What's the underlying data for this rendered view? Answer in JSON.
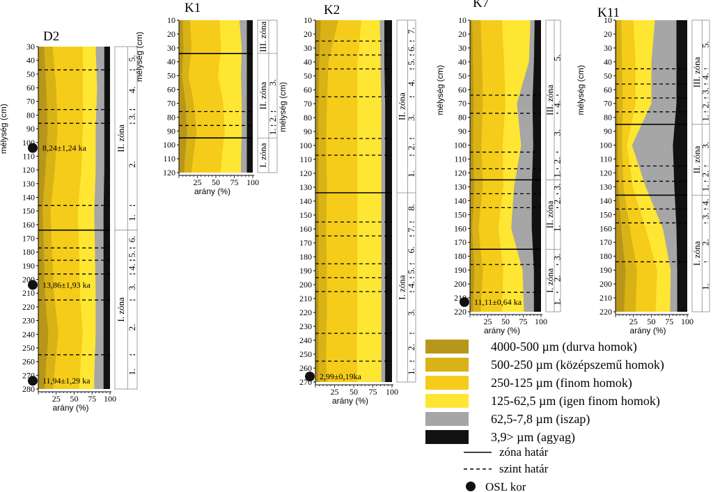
{
  "chart_data": {
    "type": "area",
    "xlabel": "arány (%)",
    "ylabel": "mélység (cm)",
    "xticks": [
      25,
      50,
      75,
      100
    ],
    "legend_placement": "bottom-right",
    "grain_classes": [
      {
        "label": "4000-500 µm (durva homok)",
        "color": "#b8961a"
      },
      {
        "label": "500-250 µm (középszemű homok)",
        "color": "#d9b216"
      },
      {
        "label": "250-125 µm (finom homok)",
        "color": "#f5cc1a"
      },
      {
        "label": "125-62,5 µm (igen finom homok)",
        "color": "#ffe633"
      },
      {
        "label": "62,5-7,8 µm (iszap)",
        "color": "#a6a6a6"
      },
      {
        "label": "3,9> µm (agyag)",
        "color": "#111111"
      }
    ],
    "line_legend": [
      {
        "label": "zóna határ",
        "style": "solid"
      },
      {
        "label": "szint határ",
        "style": "dashed"
      }
    ],
    "osl_legend": "OSL kor",
    "profiles": [
      {
        "name": "D2",
        "ylim": [
          30,
          280
        ],
        "yticks_step": 10,
        "depths": [
          30,
          60,
          90,
          120,
          150,
          180,
          210,
          240,
          270,
          280
        ],
        "cumulative": [
          [
            8,
            20,
            62,
            80,
            92,
            100
          ],
          [
            11,
            25,
            62,
            82,
            92,
            100
          ],
          [
            13,
            27,
            62,
            80,
            92,
            100
          ],
          [
            10,
            23,
            60,
            80,
            92,
            100
          ],
          [
            6,
            17,
            55,
            78,
            91,
            100
          ],
          [
            8,
            19,
            57,
            79,
            91,
            100
          ],
          [
            9,
            22,
            58,
            80,
            91,
            100
          ],
          [
            14,
            28,
            62,
            80,
            91,
            100
          ],
          [
            10,
            22,
            58,
            78,
            91,
            100
          ],
          [
            9,
            21,
            57,
            78,
            91,
            100
          ]
        ],
        "zone_lines": [
          164
        ],
        "level_lines": [
          47,
          76,
          86,
          146,
          177,
          186,
          196,
          215,
          255
        ],
        "zones": [
          {
            "label": "II. zóna",
            "from": 30,
            "to": 164,
            "levels": [
              {
                "label": "5.",
                "from": 30,
                "to": 47
              },
              {
                "label": "4.",
                "from": 47,
                "to": 76
              },
              {
                "label": "3.",
                "from": 76,
                "to": 86
              },
              {
                "label": "2.",
                "from": 86,
                "to": 146
              },
              {
                "label": "1.",
                "from": 146,
                "to": 164
              }
            ]
          },
          {
            "label": "I. zóna",
            "from": 164,
            "to": 280,
            "levels": [
              {
                "label": "6.",
                "from": 164,
                "to": 177
              },
              {
                "label": "5.",
                "from": 177,
                "to": 186
              },
              {
                "label": "4.",
                "from": 186,
                "to": 196
              },
              {
                "label": "3.",
                "from": 196,
                "to": 215
              },
              {
                "label": "2.",
                "from": 215,
                "to": 255
              },
              {
                "label": "1.",
                "from": 255,
                "to": 280
              }
            ]
          }
        ],
        "osl": [
          {
            "depth": 104,
            "label": "8,24±1,24 ka"
          },
          {
            "depth": 204,
            "label": "13,86±1,93 ka"
          },
          {
            "depth": 274,
            "label": "11,94±1,29 ka"
          }
        ]
      },
      {
        "name": "K1",
        "ylim": [
          10,
          120
        ],
        "yticks_step": 10,
        "depths": [
          10,
          30,
          50,
          70,
          90,
          110,
          120
        ],
        "cumulative": [
          [
            5,
            15,
            55,
            82,
            92,
            100
          ],
          [
            6,
            17,
            57,
            85,
            92,
            100
          ],
          [
            4,
            13,
            53,
            84,
            92,
            100
          ],
          [
            9,
            20,
            60,
            85,
            92,
            100
          ],
          [
            11,
            24,
            62,
            85,
            92,
            100
          ],
          [
            8,
            19,
            58,
            84,
            92,
            100
          ],
          [
            7,
            17,
            56,
            84,
            92,
            100
          ]
        ],
        "zone_lines": [
          34,
          95
        ],
        "level_lines": [
          76,
          86
        ],
        "zones": [
          {
            "label": "III. zóna",
            "from": 10,
            "to": 34,
            "levels": []
          },
          {
            "label": "II. zóna",
            "from": 34,
            "to": 95,
            "levels": [
              {
                "label": "3.",
                "from": 34,
                "to": 76
              },
              {
                "label": "2.",
                "from": 76,
                "to": 86
              },
              {
                "label": "1.",
                "from": 86,
                "to": 95
              }
            ]
          },
          {
            "label": "I. zóna",
            "from": 95,
            "to": 120,
            "levels": []
          }
        ],
        "osl": []
      },
      {
        "name": "K2",
        "ylim": [
          10,
          270
        ],
        "yticks_step": 10,
        "depths": [
          10,
          40,
          70,
          100,
          130,
          160,
          190,
          220,
          250,
          270
        ],
        "cumulative": [
          [
            7,
            30,
            60,
            84,
            90,
            100
          ],
          [
            5,
            17,
            55,
            85,
            90,
            100
          ],
          [
            4,
            15,
            55,
            86,
            91,
            100
          ],
          [
            4,
            14,
            55,
            86,
            91,
            100
          ],
          [
            4,
            15,
            55,
            86,
            91,
            100
          ],
          [
            4,
            14,
            55,
            86,
            91,
            100
          ],
          [
            4,
            15,
            55,
            86,
            91,
            100
          ],
          [
            4,
            15,
            55,
            86,
            91,
            100
          ],
          [
            4,
            14,
            54,
            86,
            91,
            100
          ],
          [
            4,
            15,
            55,
            86,
            91,
            100
          ]
        ],
        "zone_lines": [
          134
        ],
        "level_lines": [
          25,
          35,
          45,
          65,
          95,
          107,
          155,
          165,
          185,
          195,
          205,
          235,
          255
        ],
        "zones": [
          {
            "label": "II. zóna",
            "from": 10,
            "to": 134,
            "levels": [
              {
                "label": "7.",
                "from": 10,
                "to": 25
              },
              {
                "label": "6.",
                "from": 25,
                "to": 35
              },
              {
                "label": "5.",
                "from": 35,
                "to": 45
              },
              {
                "label": "4.",
                "from": 45,
                "to": 65
              },
              {
                "label": "3.",
                "from": 65,
                "to": 95
              },
              {
                "label": "2.",
                "from": 95,
                "to": 107
              },
              {
                "label": "1.",
                "from": 107,
                "to": 134
              }
            ]
          },
          {
            "label": "I. zóna",
            "from": 134,
            "to": 270,
            "levels": [
              {
                "label": "8.",
                "from": 134,
                "to": 155
              },
              {
                "label": "7.",
                "from": 155,
                "to": 165
              },
              {
                "label": "6.",
                "from": 165,
                "to": 185
              },
              {
                "label": "5.",
                "from": 185,
                "to": 195
              },
              {
                "label": "4.",
                "from": 195,
                "to": 205
              },
              {
                "label": "3.",
                "from": 205,
                "to": 235
              },
              {
                "label": "2.",
                "from": 235,
                "to": 255
              },
              {
                "label": "1.",
                "from": 255,
                "to": 270
              }
            ]
          }
        ],
        "osl": [
          {
            "depth": 266,
            "label": "2,99±0,19ka"
          }
        ]
      },
      {
        "name": "K7",
        "ylim": [
          10,
          220
        ],
        "yticks_step": 10,
        "depths": [
          10,
          40,
          70,
          100,
          130,
          160,
          190,
          220
        ],
        "cumulative": [
          [
            3,
            15,
            45,
            85,
            91,
            100
          ],
          [
            4,
            17,
            48,
            83,
            90,
            100
          ],
          [
            5,
            18,
            50,
            66,
            88,
            100
          ],
          [
            4,
            16,
            46,
            72,
            89,
            100
          ],
          [
            6,
            18,
            47,
            62,
            87,
            100
          ],
          [
            3,
            12,
            40,
            58,
            87,
            100
          ],
          [
            6,
            18,
            47,
            74,
            90,
            100
          ],
          [
            4,
            15,
            45,
            76,
            90,
            100
          ]
        ],
        "zone_lines": [
          125,
          175
        ],
        "level_lines": [
          64,
          77,
          105,
          117,
          135,
          145,
          186,
          206
        ],
        "zones": [
          {
            "label": "III. zóna",
            "from": 10,
            "to": 125,
            "levels": [
              {
                "label": "5.",
                "from": 10,
                "to": 64
              },
              {
                "label": "4.",
                "from": 64,
                "to": 77
              },
              {
                "label": "3.",
                "from": 77,
                "to": 105
              },
              {
                "label": "2.",
                "from": 105,
                "to": 117
              },
              {
                "label": "1.",
                "from": 117,
                "to": 125
              }
            ]
          },
          {
            "label": "II. zóna",
            "from": 125,
            "to": 175,
            "levels": [
              {
                "label": "3.",
                "from": 125,
                "to": 135
              },
              {
                "label": "2.",
                "from": 135,
                "to": 145
              },
              {
                "label": "1.",
                "from": 145,
                "to": 175
              }
            ]
          },
          {
            "label": "I. zóna",
            "from": 175,
            "to": 220,
            "levels": [
              {
                "label": "3.",
                "from": 175,
                "to": 186
              },
              {
                "label": "2.",
                "from": 186,
                "to": 206
              },
              {
                "label": "1.",
                "from": 206,
                "to": 220
              }
            ]
          }
        ],
        "osl": [
          {
            "depth": 213,
            "label": "11,11±0,64 ka"
          }
        ]
      },
      {
        "name": "K11",
        "ylim": [
          10,
          220
        ],
        "yticks_step": 10,
        "depths": [
          10,
          40,
          70,
          100,
          130,
          160,
          190,
          220
        ],
        "cumulative": [
          [
            2,
            8,
            25,
            55,
            85,
            100
          ],
          [
            2,
            9,
            28,
            50,
            85,
            100
          ],
          [
            3,
            10,
            28,
            50,
            85,
            100
          ],
          [
            3,
            9,
            16,
            23,
            80,
            100
          ],
          [
            4,
            11,
            24,
            42,
            82,
            100
          ],
          [
            8,
            20,
            42,
            66,
            85,
            100
          ],
          [
            14,
            30,
            58,
            77,
            86,
            100
          ],
          [
            12,
            28,
            56,
            76,
            86,
            100
          ]
        ],
        "zone_lines": [
          85,
          136
        ],
        "level_lines": [
          45,
          56,
          66,
          76,
          115,
          126,
          146,
          156,
          184
        ],
        "zones": [
          {
            "label": "III. zóna",
            "from": 10,
            "to": 85,
            "levels": [
              {
                "label": "5.",
                "from": 10,
                "to": 45
              },
              {
                "label": "4.",
                "from": 45,
                "to": 56
              },
              {
                "label": "3.",
                "from": 56,
                "to": 66
              },
              {
                "label": "2.",
                "from": 66,
                "to": 76
              },
              {
                "label": "1.",
                "from": 76,
                "to": 85
              }
            ]
          },
          {
            "label": "II. zóna",
            "from": 85,
            "to": 136,
            "levels": [
              {
                "label": "3.",
                "from": 85,
                "to": 115
              },
              {
                "label": "2.",
                "from": 115,
                "to": 126
              },
              {
                "label": "1.",
                "from": 126,
                "to": 136
              }
            ]
          },
          {
            "label": "I. zóna",
            "from": 136,
            "to": 220,
            "levels": [
              {
                "label": "4.",
                "from": 136,
                "to": 146
              },
              {
                "label": "3.",
                "from": 146,
                "to": 156
              },
              {
                "label": "2.",
                "from": 156,
                "to": 184
              },
              {
                "label": "1.",
                "from": 184,
                "to": 220
              }
            ]
          }
        ],
        "osl": []
      }
    ]
  }
}
